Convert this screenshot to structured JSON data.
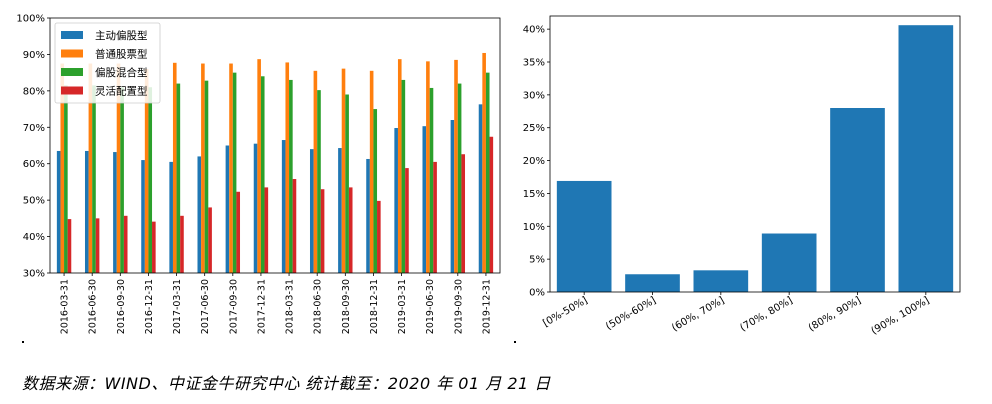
{
  "charts": {
    "chart_data": [
      {
        "type": "bar",
        "categories": [
          "2016-03-31",
          "2016-06-30",
          "2016-09-30",
          "2016-12-31",
          "2017-03-31",
          "2017-06-30",
          "2017-09-30",
          "2017-12-31",
          "2018-03-31",
          "2018-06-30",
          "2018-09-30",
          "2018-12-31",
          "2019-03-31",
          "2019-06-30",
          "2019-09-30",
          "2019-12-31"
        ],
        "series": [
          {
            "name": "主动偏股型",
            "color": "#1f77b4",
            "values": [
              63.5,
              63.5,
              63.2,
              61.0,
              60.5,
              62.0,
              65.0,
              65.5,
              66.5,
              64.0,
              64.3,
              61.3,
              69.8,
              70.3,
              72.0,
              76.3
            ]
          },
          {
            "name": "普通股票型",
            "color": "#ff7f0e",
            "values": [
              87.5,
              87.5,
              87.5,
              86.0,
              87.7,
              87.5,
              87.5,
              88.7,
              87.8,
              85.5,
              86.1,
              85.5,
              88.7,
              88.1,
              88.5,
              90.4
            ]
          },
          {
            "name": "偏股混合型",
            "color": "#2ca02c",
            "values": [
              81.5,
              81.5,
              81.0,
              81.0,
              82.0,
              82.8,
              85.0,
              84.0,
              83.0,
              80.2,
              79.0,
              75.0,
              83.0,
              80.8,
              82.0,
              85.0
            ]
          },
          {
            "name": "灵活配置型",
            "color": "#d62728",
            "values": [
              44.8,
              45.0,
              45.7,
              44.1,
              45.7,
              48.0,
              52.3,
              53.5,
              55.8,
              53.0,
              53.5,
              49.8,
              58.8,
              60.5,
              62.6,
              67.4
            ]
          }
        ],
        "ylim": [
          30,
          100
        ],
        "yticks": [
          "30%",
          "40%",
          "50%",
          "60%",
          "70%",
          "80%",
          "90%",
          "100%"
        ],
        "legend": "upper-left"
      },
      {
        "type": "bar",
        "categories": [
          "[0%-50%]",
          "(50%-60%]",
          "(60%, 70%]",
          "(70%, 80%]",
          "(80%, 90%]",
          "(90%, 100%]"
        ],
        "values": [
          16.9,
          2.7,
          3.3,
          8.9,
          28.0,
          40.6
        ],
        "color": "#1f77b4",
        "ylim": [
          0,
          42
        ],
        "yticks": [
          "0%",
          "5%",
          "10%",
          "15%",
          "20%",
          "25%",
          "30%",
          "35%",
          "40%"
        ]
      }
    ]
  },
  "footer": {
    "source": "数据来源：WIND、中证金牛研究中心   统计截至：2020 年 01 月 21 日"
  }
}
